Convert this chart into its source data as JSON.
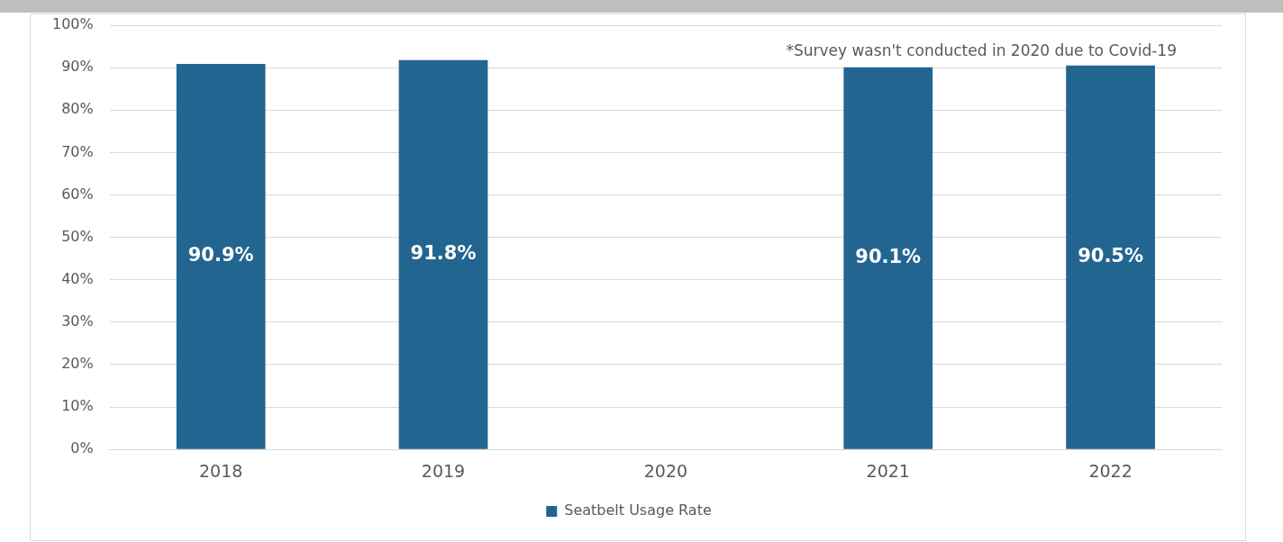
{
  "chart_data": {
    "type": "bar",
    "categories": [
      "2018",
      "2019",
      "2020",
      "2021",
      "2022"
    ],
    "series": [
      {
        "name": "Seatbelt Usage Rate",
        "color": "#236591",
        "values": [
          90.9,
          91.8,
          null,
          90.1,
          90.5
        ],
        "value_labels": [
          "90.9%",
          "91.8%",
          null,
          "90.1%",
          "90.5%"
        ]
      }
    ],
    "ylim": [
      0,
      100
    ],
    "yticks": [
      {
        "value": 0,
        "label": "0%"
      },
      {
        "value": 10,
        "label": "10%"
      },
      {
        "value": 20,
        "label": "20%"
      },
      {
        "value": 30,
        "label": "30%"
      },
      {
        "value": 40,
        "label": "40%"
      },
      {
        "value": 50,
        "label": "50%"
      },
      {
        "value": 60,
        "label": "60%"
      },
      {
        "value": 70,
        "label": "70%"
      },
      {
        "value": 80,
        "label": "80%"
      },
      {
        "value": 90,
        "label": "90%"
      },
      {
        "value": 100,
        "label": "100%"
      }
    ],
    "grid": "y",
    "legend": "bottom",
    "annotations": [
      "*Survey wasn't conducted in 2020 due to Covid-19"
    ]
  }
}
